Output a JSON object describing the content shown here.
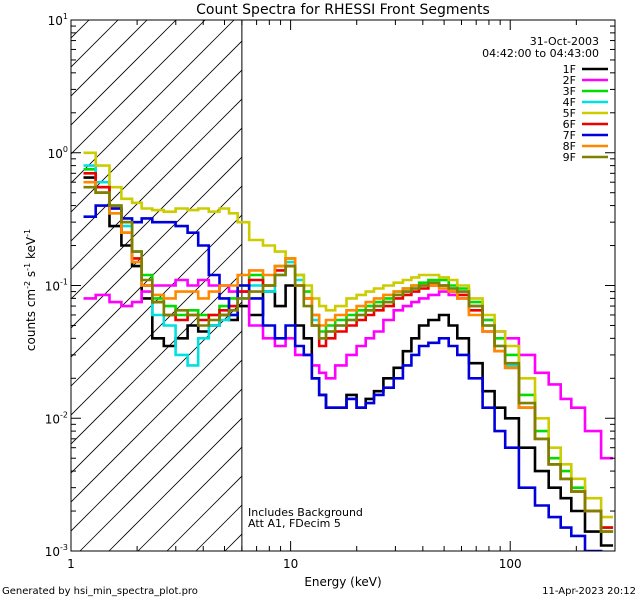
{
  "chart_data": {
    "type": "line",
    "title": "Count Spectra for RHESSI Front Segments",
    "xlabel": "Energy (keV)",
    "ylabel_parts": [
      "counts cm",
      "-2",
      " s",
      "-1",
      " keV",
      "-1"
    ],
    "x_scale": "log",
    "y_scale": "log",
    "xlim": [
      1,
      300
    ],
    "ylim": [
      0.001,
      10
    ],
    "x_ticks": [
      {
        "v": 1,
        "label": "1"
      },
      {
        "v": 10,
        "label": "10"
      },
      {
        "v": 100,
        "label": "100"
      }
    ],
    "y_ticks": [
      {
        "v": 0.001,
        "base": "10",
        "exp": "-3"
      },
      {
        "v": 0.01,
        "base": "10",
        "exp": "-2"
      },
      {
        "v": 0.1,
        "base": "10",
        "exp": "-1"
      },
      {
        "v": 1,
        "base": "10",
        "exp": "0"
      },
      {
        "v": 10,
        "base": "10",
        "exp": "1"
      }
    ],
    "date": "31-Oct-2003",
    "time_range": "04:42:00 to 04:43:00",
    "annotation_lines": [
      "Includes Background",
      "Att A1, FDecim 5"
    ],
    "hatched_region_max_kev": 6,
    "series": [
      {
        "name": "1F",
        "color": "#000000",
        "x": [
          1.2,
          1.4,
          1.6,
          1.8,
          2.0,
          2.2,
          2.5,
          2.8,
          3.2,
          3.6,
          4.0,
          4.5,
          5,
          5.5,
          6,
          7,
          8,
          9,
          10,
          11,
          12,
          13,
          14,
          15,
          17,
          19,
          21,
          23,
          25,
          28,
          31,
          34,
          37,
          40,
          45,
          50,
          55,
          60,
          70,
          80,
          90,
          100,
          120,
          140,
          160,
          180,
          200,
          240,
          280
        ],
        "y": [
          0.65,
          0.5,
          0.28,
          0.2,
          0.14,
          0.08,
          0.04,
          0.035,
          0.04,
          0.05,
          0.045,
          0.05,
          0.06,
          0.055,
          0.07,
          0.06,
          0.09,
          0.07,
          0.1,
          0.05,
          0.04,
          0.02,
          0.015,
          0.012,
          0.012,
          0.015,
          0.012,
          0.014,
          0.016,
          0.02,
          0.024,
          0.032,
          0.04,
          0.05,
          0.055,
          0.06,
          0.05,
          0.04,
          0.026,
          0.016,
          0.012,
          0.01,
          0.006,
          0.004,
          0.003,
          0.0025,
          0.002,
          0.0014,
          0.0011
        ]
      },
      {
        "name": "2F",
        "color": "#ff00ff",
        "x": [
          1.2,
          1.4,
          1.6,
          1.8,
          2.0,
          2.2,
          2.5,
          2.8,
          3.2,
          3.6,
          4.0,
          4.5,
          5,
          5.5,
          6,
          7,
          8,
          9,
          10,
          11,
          12,
          13,
          14,
          15,
          17,
          19,
          21,
          23,
          25,
          28,
          31,
          34,
          37,
          40,
          45,
          50,
          55,
          60,
          70,
          80,
          90,
          100,
          120,
          140,
          160,
          180,
          200,
          240,
          280
        ],
        "y": [
          0.08,
          0.085,
          0.075,
          0.07,
          0.075,
          0.09,
          0.1,
          0.1,
          0.11,
          0.1,
          0.11,
          0.1,
          0.1,
          0.09,
          0.09,
          0.05,
          0.04,
          0.035,
          0.04,
          0.03,
          0.03,
          0.025,
          0.022,
          0.02,
          0.025,
          0.03,
          0.035,
          0.04,
          0.045,
          0.055,
          0.065,
          0.07,
          0.075,
          0.08,
          0.085,
          0.09,
          0.085,
          0.08,
          0.07,
          0.055,
          0.045,
          0.04,
          0.03,
          0.022,
          0.018,
          0.014,
          0.012,
          0.008,
          0.005
        ]
      },
      {
        "name": "3F",
        "color": "#00dd00",
        "x": [
          1.2,
          1.4,
          1.6,
          1.8,
          2.0,
          2.2,
          2.5,
          2.8,
          3.2,
          3.6,
          4.0,
          4.5,
          5,
          5.5,
          6,
          7,
          8,
          9,
          10,
          11,
          12,
          13,
          14,
          15,
          17,
          19,
          21,
          23,
          25,
          28,
          31,
          34,
          37,
          40,
          45,
          50,
          55,
          60,
          70,
          80,
          90,
          100,
          120,
          140,
          160,
          180,
          200,
          240,
          280
        ],
        "y": [
          0.75,
          0.55,
          0.4,
          0.3,
          0.18,
          0.12,
          0.08,
          0.07,
          0.06,
          0.065,
          0.06,
          0.06,
          0.07,
          0.08,
          0.1,
          0.12,
          0.1,
          0.14,
          0.16,
          0.12,
          0.09,
          0.06,
          0.045,
          0.05,
          0.055,
          0.06,
          0.065,
          0.07,
          0.075,
          0.08,
          0.09,
          0.095,
          0.1,
          0.105,
          0.11,
          0.11,
          0.1,
          0.095,
          0.075,
          0.055,
          0.04,
          0.03,
          0.015,
          0.008,
          0.005,
          0.004,
          0.003,
          0.002,
          0.0015
        ]
      },
      {
        "name": "4F",
        "color": "#00e0e0",
        "x": [
          1.2,
          1.4,
          1.6,
          1.8,
          2.0,
          2.2,
          2.5,
          2.8,
          3.2,
          3.6,
          4.0,
          4.5,
          5,
          5.5,
          6,
          7,
          8,
          9,
          10,
          11,
          12,
          13,
          14,
          15,
          17,
          19,
          21,
          23,
          25,
          28,
          31,
          34,
          37,
          40,
          45,
          50,
          55,
          60,
          70,
          80,
          90,
          100,
          120,
          140,
          160,
          180,
          200,
          240,
          280
        ],
        "y": [
          0.8,
          0.6,
          0.35,
          0.28,
          0.18,
          0.1,
          0.06,
          0.05,
          0.03,
          0.025,
          0.04,
          0.05,
          0.055,
          0.06,
          0.08,
          0.1,
          0.09,
          0.12,
          0.15,
          0.11,
          0.08,
          0.055,
          0.04,
          0.045,
          0.05,
          0.055,
          0.06,
          0.065,
          0.07,
          0.075,
          0.085,
          0.09,
          0.095,
          0.1,
          0.105,
          0.1,
          0.095,
          0.09,
          0.07,
          0.05,
          0.035,
          0.025,
          0.012,
          0.007,
          0.0045,
          0.0035,
          0.0028,
          0.002,
          0.0014
        ]
      },
      {
        "name": "5F",
        "color": "#cccc00",
        "x": [
          1.2,
          1.4,
          1.6,
          1.8,
          2.0,
          2.2,
          2.5,
          2.8,
          3.2,
          3.6,
          4.0,
          4.5,
          5,
          5.5,
          6,
          7,
          8,
          9,
          10,
          11,
          12,
          13,
          14,
          15,
          17,
          19,
          21,
          23,
          25,
          28,
          31,
          34,
          37,
          40,
          45,
          50,
          55,
          60,
          70,
          80,
          90,
          100,
          120,
          140,
          160,
          180,
          200,
          240,
          280
        ],
        "y": [
          1.0,
          0.8,
          0.55,
          0.45,
          0.42,
          0.38,
          0.37,
          0.36,
          0.38,
          0.37,
          0.38,
          0.36,
          0.38,
          0.35,
          0.3,
          0.22,
          0.2,
          0.18,
          0.16,
          0.12,
          0.1,
          0.08,
          0.07,
          0.065,
          0.07,
          0.08,
          0.085,
          0.09,
          0.095,
          0.1,
          0.105,
          0.11,
          0.115,
          0.12,
          0.12,
          0.115,
          0.11,
          0.1,
          0.08,
          0.06,
          0.045,
          0.035,
          0.02,
          0.01,
          0.006,
          0.0045,
          0.0035,
          0.0025,
          0.0018
        ]
      },
      {
        "name": "6F",
        "color": "#ee0000",
        "x": [
          1.2,
          1.4,
          1.6,
          1.8,
          2.0,
          2.2,
          2.5,
          2.8,
          3.2,
          3.6,
          4.0,
          4.5,
          5,
          5.5,
          6,
          7,
          8,
          9,
          10,
          11,
          12,
          13,
          14,
          15,
          17,
          19,
          21,
          23,
          25,
          28,
          31,
          34,
          37,
          40,
          45,
          50,
          55,
          60,
          70,
          80,
          90,
          100,
          120,
          140,
          160,
          180,
          200,
          240,
          280
        ],
        "y": [
          0.7,
          0.55,
          0.38,
          0.25,
          0.16,
          0.1,
          0.075,
          0.06,
          0.055,
          0.06,
          0.055,
          0.06,
          0.065,
          0.07,
          0.09,
          0.11,
          0.1,
          0.13,
          0.14,
          0.1,
          0.08,
          0.05,
          0.035,
          0.04,
          0.045,
          0.05,
          0.055,
          0.06,
          0.065,
          0.07,
          0.08,
          0.085,
          0.09,
          0.095,
          0.1,
          0.1,
          0.09,
          0.085,
          0.065,
          0.045,
          0.032,
          0.024,
          0.012,
          0.007,
          0.0045,
          0.0035,
          0.0028,
          0.002,
          0.0015
        ]
      },
      {
        "name": "7F",
        "color": "#0000dd",
        "x": [
          1.2,
          1.4,
          1.6,
          1.8,
          2.0,
          2.2,
          2.5,
          2.8,
          3.2,
          3.6,
          4.0,
          4.5,
          5,
          5.5,
          6,
          7,
          8,
          9,
          10,
          11,
          12,
          13,
          14,
          15,
          17,
          19,
          21,
          23,
          25,
          28,
          31,
          34,
          37,
          40,
          45,
          50,
          55,
          60,
          70,
          80,
          90,
          100,
          120,
          140,
          160,
          180,
          200,
          240,
          280
        ],
        "y": [
          0.33,
          0.4,
          0.38,
          0.32,
          0.3,
          0.32,
          0.3,
          0.3,
          0.28,
          0.25,
          0.2,
          0.12,
          0.08,
          0.06,
          0.1,
          0.08,
          0.05,
          0.04,
          0.05,
          0.035,
          0.03,
          0.02,
          0.015,
          0.012,
          0.012,
          0.014,
          0.012,
          0.013,
          0.015,
          0.017,
          0.02,
          0.025,
          0.03,
          0.035,
          0.037,
          0.04,
          0.035,
          0.03,
          0.02,
          0.012,
          0.008,
          0.006,
          0.003,
          0.0022,
          0.0018,
          0.0015,
          0.0013,
          0.001,
          0.0009
        ]
      },
      {
        "name": "8F",
        "color": "#ff8800",
        "x": [
          1.2,
          1.4,
          1.6,
          1.8,
          2.0,
          2.2,
          2.5,
          2.8,
          3.2,
          3.6,
          4.0,
          4.5,
          5,
          5.5,
          6,
          7,
          8,
          9,
          10,
          11,
          12,
          13,
          14,
          15,
          17,
          19,
          21,
          23,
          25,
          28,
          31,
          34,
          37,
          40,
          45,
          50,
          55,
          60,
          70,
          80,
          90,
          100,
          120,
          140,
          160,
          180,
          200,
          240,
          280
        ],
        "y": [
          0.6,
          0.5,
          0.35,
          0.25,
          0.15,
          0.1,
          0.085,
          0.08,
          0.09,
          0.09,
          0.08,
          0.09,
          0.1,
          0.1,
          0.12,
          0.13,
          0.12,
          0.14,
          0.16,
          0.1,
          0.08,
          0.06,
          0.05,
          0.055,
          0.06,
          0.065,
          0.07,
          0.075,
          0.08,
          0.085,
          0.09,
          0.095,
          0.1,
          0.1,
          0.1,
          0.095,
          0.09,
          0.08,
          0.06,
          0.045,
          0.032,
          0.024,
          0.012,
          0.007,
          0.0045,
          0.0035,
          0.0028,
          0.002,
          0.0014
        ]
      },
      {
        "name": "9F",
        "color": "#808000",
        "x": [
          1.2,
          1.4,
          1.6,
          1.8,
          2.0,
          2.2,
          2.5,
          2.8,
          3.2,
          3.6,
          4.0,
          4.5,
          5,
          5.5,
          6,
          7,
          8,
          9,
          10,
          11,
          12,
          13,
          14,
          15,
          17,
          19,
          21,
          23,
          25,
          28,
          31,
          34,
          37,
          40,
          45,
          50,
          55,
          60,
          70,
          80,
          90,
          100,
          120,
          140,
          160,
          180,
          200,
          240,
          280
        ],
        "y": [
          0.55,
          0.5,
          0.4,
          0.3,
          0.18,
          0.11,
          0.075,
          0.06,
          0.065,
          0.06,
          0.05,
          0.055,
          0.06,
          0.065,
          0.08,
          0.09,
          0.1,
          0.12,
          0.14,
          0.1,
          0.07,
          0.05,
          0.04,
          0.045,
          0.05,
          0.055,
          0.06,
          0.065,
          0.07,
          0.075,
          0.085,
          0.09,
          0.095,
          0.1,
          0.105,
          0.1,
          0.095,
          0.09,
          0.07,
          0.05,
          0.035,
          0.026,
          0.013,
          0.007,
          0.0045,
          0.0035,
          0.0028,
          0.002,
          0.0014
        ]
      }
    ]
  },
  "footer": {
    "generator": "Generated by hsi_min_spectra_plot.pro",
    "timestamp": "11-Apr-2023 20:12"
  }
}
